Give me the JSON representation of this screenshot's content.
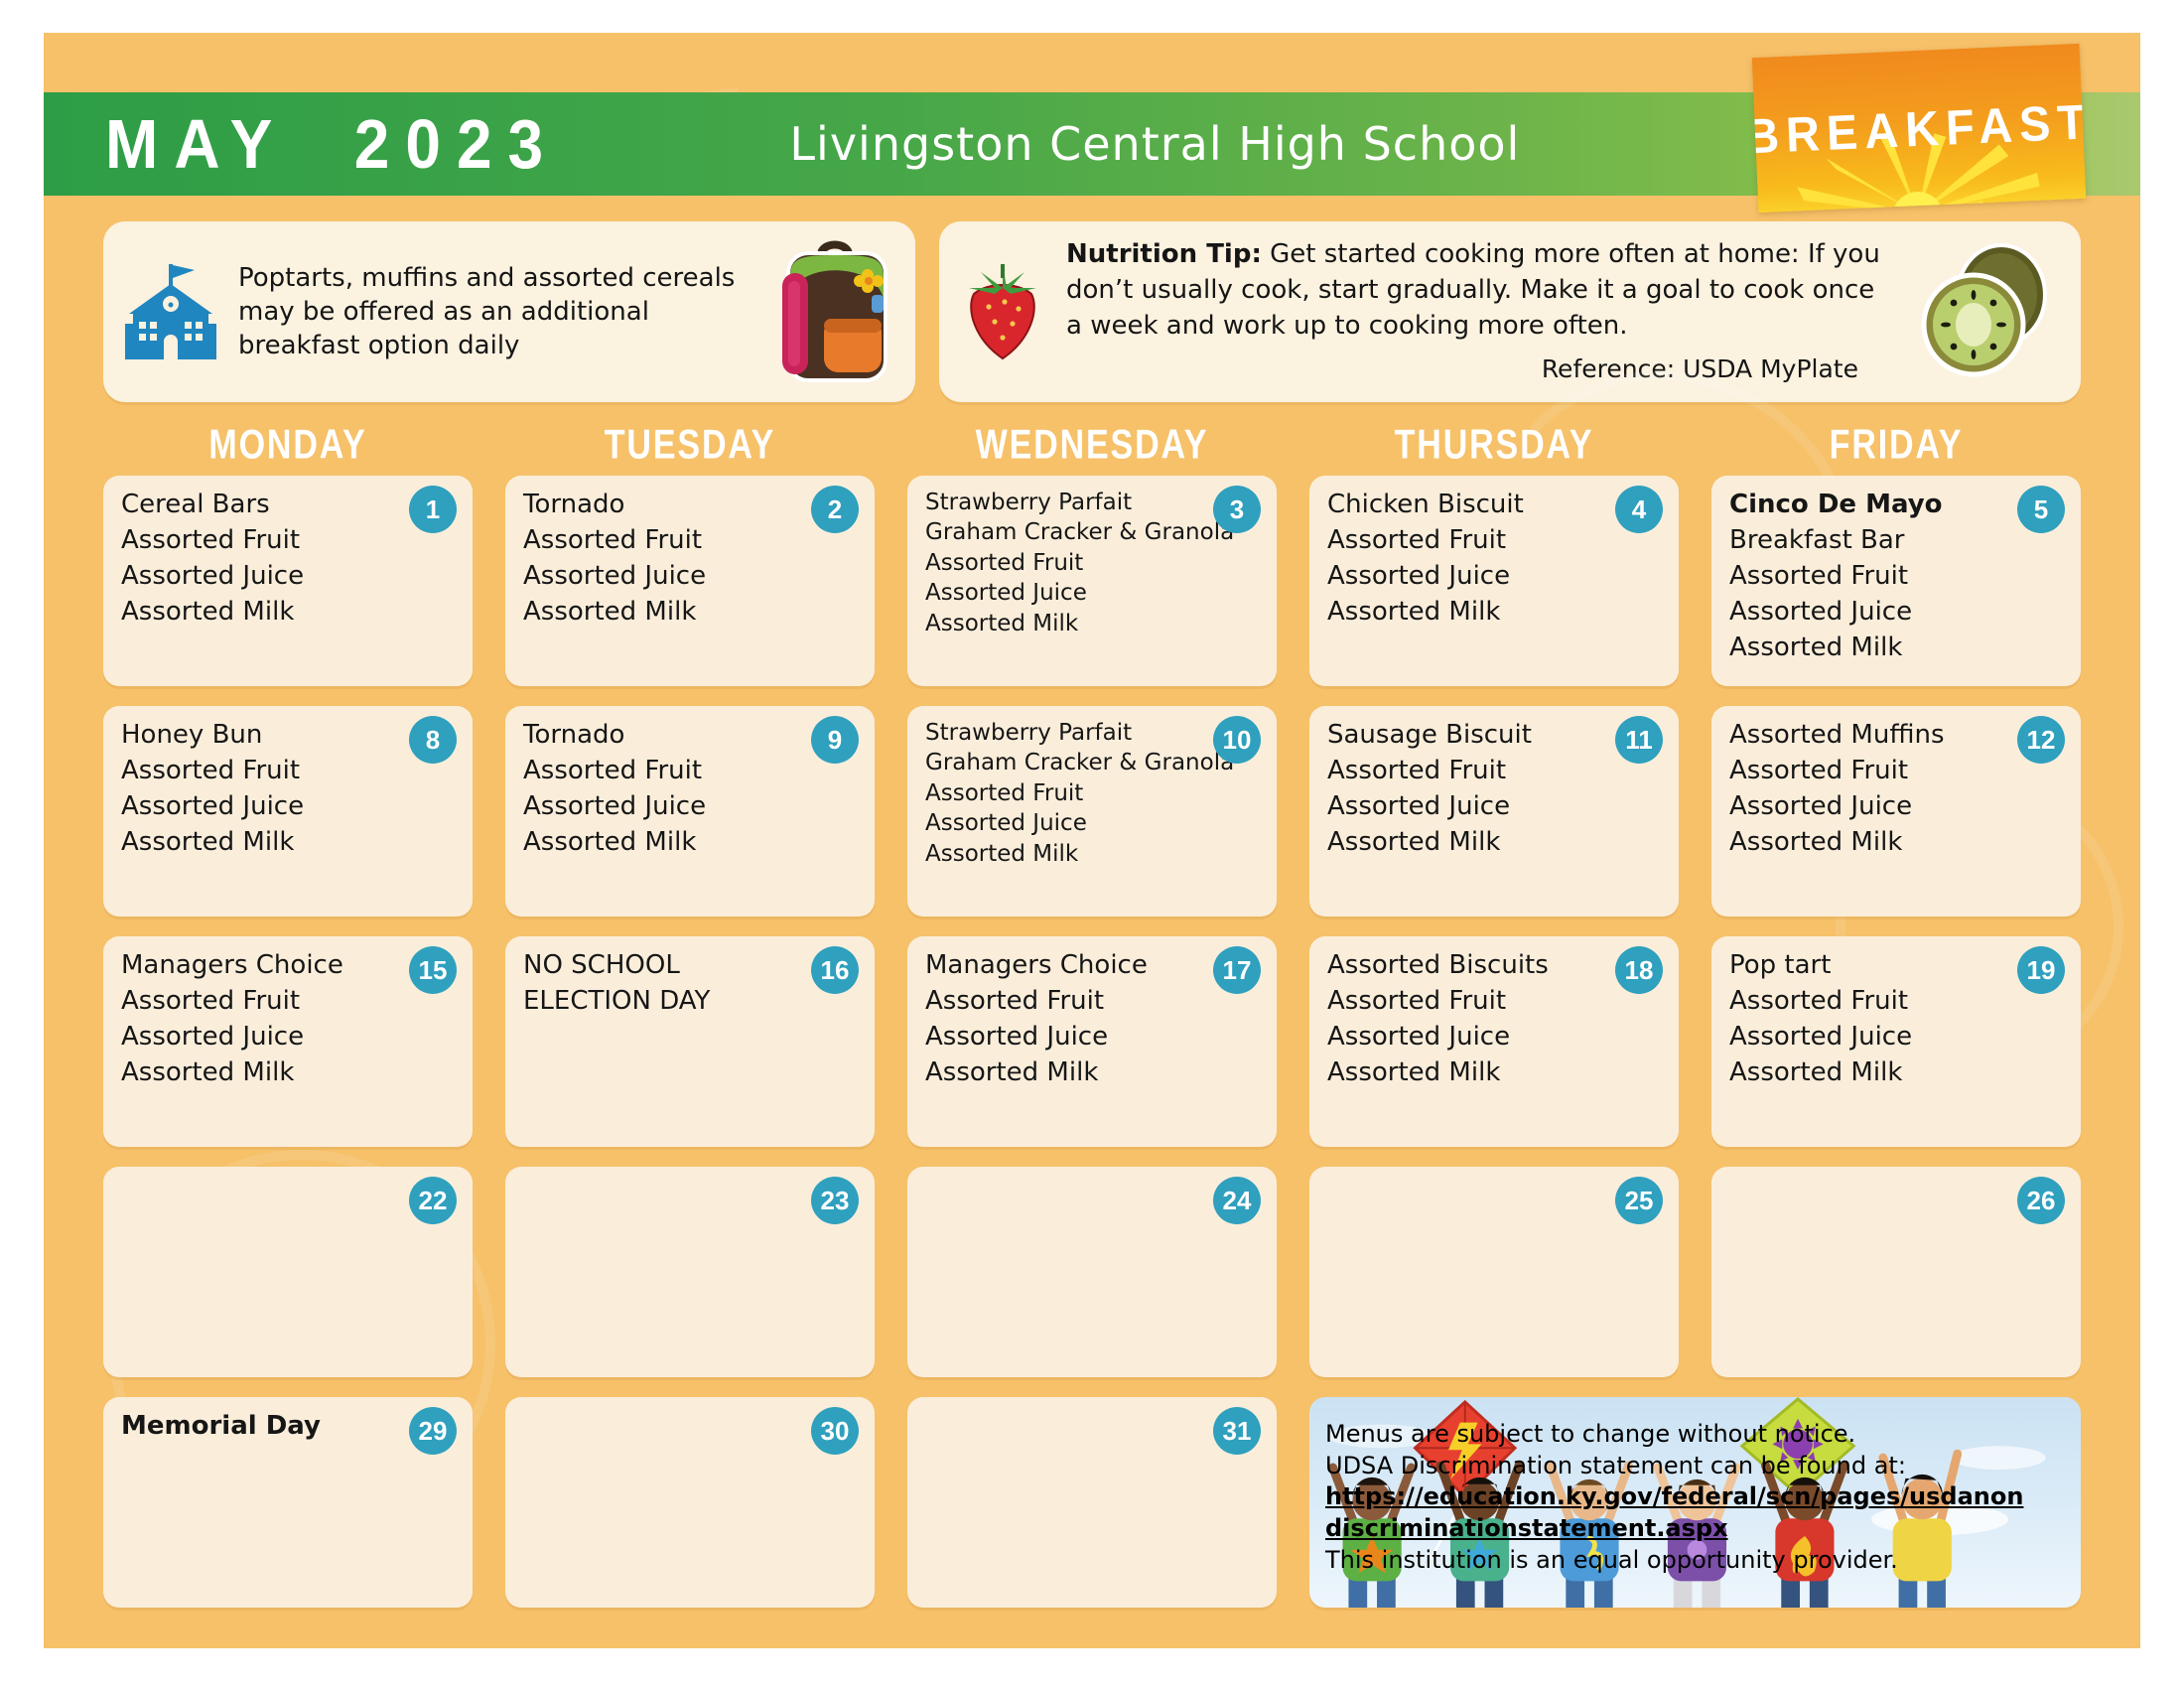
{
  "page": {
    "month_title": "MAY  2023",
    "school_name": "Livingston Central High School",
    "meal_badge": "BREAKFAST"
  },
  "info_left": {
    "text": "Poptarts, muffins and assorted cereals may be offered as an additional breakfast option daily"
  },
  "info_right": {
    "tip_label": "Nutrition Tip:",
    "tip_text": " Get started cooking more often at home: If you don’t usually cook, start gradually. Make it a goal to cook once a week and work up to cooking more often.",
    "reference": "Reference: USDA MyPlate"
  },
  "weekdays": [
    "MONDAY",
    "TUESDAY",
    "WEDNESDAY",
    "THURSDAY",
    "FRIDAY"
  ],
  "calendar": {
    "cells": [
      {
        "day": "1",
        "lines": [
          "Cereal Bars",
          "Assorted Fruit",
          "Assorted Juice",
          "Assorted Milk"
        ]
      },
      {
        "day": "2",
        "lines": [
          "Tornado",
          "Assorted Fruit",
          "Assorted Juice",
          "Assorted Milk"
        ]
      },
      {
        "day": "3",
        "dense": true,
        "lines": [
          "Strawberry Parfait",
          "Graham Cracker & Granola",
          "Assorted Fruit",
          "Assorted Juice",
          "Assorted Milk"
        ]
      },
      {
        "day": "4",
        "lines": [
          "Chicken Biscuit",
          "Assorted Fruit",
          "Assorted Juice",
          "Assorted Milk"
        ]
      },
      {
        "day": "5",
        "title_bold": true,
        "lines": [
          "Cinco De Mayo",
          "Breakfast Bar",
          "Assorted Fruit",
          "Assorted Juice",
          "Assorted Milk"
        ]
      },
      {
        "day": "8",
        "lines": [
          "Honey Bun",
          "Assorted Fruit",
          "Assorted Juice",
          "Assorted Milk"
        ]
      },
      {
        "day": "9",
        "lines": [
          "Tornado",
          "Assorted Fruit",
          "Assorted Juice",
          "Assorted Milk"
        ]
      },
      {
        "day": "10",
        "dense": true,
        "lines": [
          "Strawberry Parfait",
          "Graham Cracker & Granola",
          "Assorted Fruit",
          "Assorted Juice",
          "Assorted Milk"
        ]
      },
      {
        "day": "11",
        "lines": [
          "Sausage Biscuit",
          "Assorted Fruit",
          "Assorted Juice",
          "Assorted Milk"
        ]
      },
      {
        "day": "12",
        "lines": [
          "Assorted Muffins",
          "Assorted Fruit",
          "Assorted Juice",
          "Assorted Milk"
        ]
      },
      {
        "day": "15",
        "lines": [
          "Managers Choice",
          "Assorted Fruit",
          "Assorted Juice",
          "Assorted Milk"
        ]
      },
      {
        "day": "16",
        "lines": [
          "NO SCHOOL",
          "ELECTION DAY"
        ]
      },
      {
        "day": "17",
        "lines": [
          "Managers Choice",
          "Assorted Fruit",
          "Assorted Juice",
          "Assorted Milk"
        ]
      },
      {
        "day": "18",
        "lines": [
          "Assorted Biscuits",
          "Assorted Fruit",
          "Assorted Juice",
          "Assorted Milk"
        ]
      },
      {
        "day": "19",
        "lines": [
          "Pop tart",
          "Assorted Fruit",
          "Assorted Juice",
          "Assorted Milk"
        ]
      },
      {
        "day": "22",
        "lines": []
      },
      {
        "day": "23",
        "lines": []
      },
      {
        "day": "24",
        "lines": []
      },
      {
        "day": "25",
        "lines": []
      },
      {
        "day": "26",
        "lines": []
      },
      {
        "day": "29",
        "title_bold": true,
        "lines": [
          "Memorial Day"
        ]
      },
      {
        "day": "30",
        "lines": []
      },
      {
        "day": "31",
        "lines": []
      }
    ]
  },
  "disclaimer": {
    "line1": "Menus are subject to change without notice.",
    "line2": "UDSA Discrimination statement can be found at:",
    "link": "https://education.ky.gov/federal/scn/pages/usdanondiscriminationstatement.aspx",
    "line3": "This institution is an equal opportunity provider."
  },
  "colors": {
    "page_background": "#f6c169",
    "banner_green_dark": "#2d9d47",
    "banner_green_light": "#8cc04c",
    "badge_orange": "#f08a1d",
    "badge_yellow": "#fbd02a",
    "cell_background": "#faeedb",
    "info_box_background": "#fbf2e0",
    "day_circle_teal": "#2fa0be",
    "school_icon_blue": "#1f86c0"
  }
}
